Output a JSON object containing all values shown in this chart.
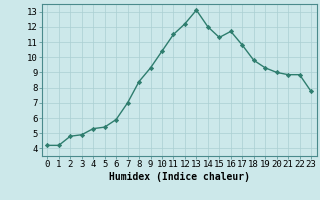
{
  "x": [
    0,
    1,
    2,
    3,
    4,
    5,
    6,
    7,
    8,
    9,
    10,
    11,
    12,
    13,
    14,
    15,
    16,
    17,
    18,
    19,
    20,
    21,
    22,
    23
  ],
  "y": [
    4.2,
    4.2,
    4.8,
    4.9,
    5.3,
    5.4,
    5.9,
    7.0,
    8.4,
    9.3,
    10.4,
    11.5,
    12.2,
    13.1,
    12.0,
    11.3,
    11.7,
    10.8,
    9.8,
    9.3,
    9.0,
    8.85,
    8.85,
    7.75
  ],
  "line_color": "#2e7d6e",
  "marker": "D",
  "marker_size": 2.2,
  "bg_color": "#cce8ea",
  "grid_color": "#aacfd2",
  "xlabel": "Humidex (Indice chaleur)",
  "xlim": [
    -0.5,
    23.5
  ],
  "ylim": [
    3.5,
    13.5
  ],
  "yticks": [
    4,
    5,
    6,
    7,
    8,
    9,
    10,
    11,
    12,
    13
  ],
  "xticks": [
    0,
    1,
    2,
    3,
    4,
    5,
    6,
    7,
    8,
    9,
    10,
    11,
    12,
    13,
    14,
    15,
    16,
    17,
    18,
    19,
    20,
    21,
    22,
    23
  ],
  "xlabel_fontsize": 7,
  "tick_fontsize": 6.5,
  "line_width": 1.0
}
